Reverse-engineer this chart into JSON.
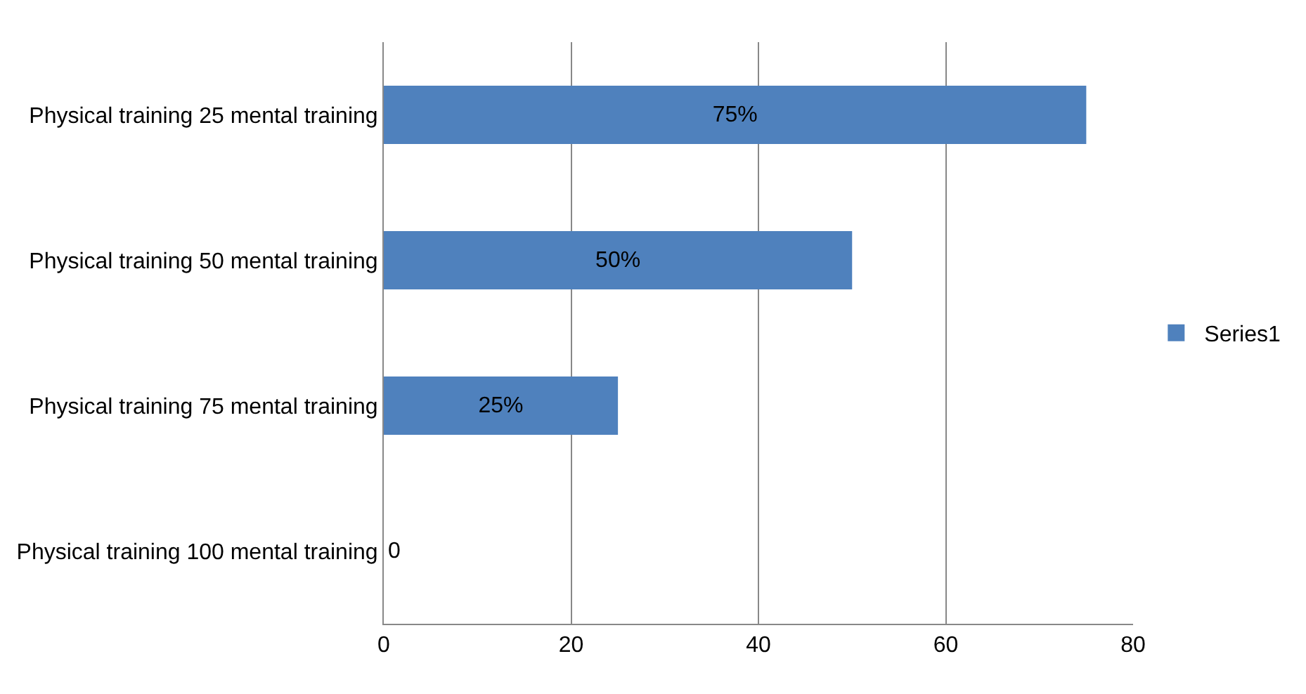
{
  "chart_data": {
    "type": "bar",
    "orientation": "horizontal",
    "categories": [
      "Physical training 25 mental training",
      "Physical training 50 mental training",
      "Physical training 75 mental training",
      "Physical training 100 mental training"
    ],
    "series": [
      {
        "name": "Series1",
        "color": "#4f81bd",
        "values": [
          75,
          50,
          25,
          0
        ],
        "value_labels": [
          "75%",
          "50%",
          "25%",
          "0"
        ]
      }
    ],
    "xlim": [
      0,
      80
    ],
    "xticks": [
      0,
      20,
      40,
      60,
      80
    ],
    "grid": "x",
    "legend": "right"
  }
}
